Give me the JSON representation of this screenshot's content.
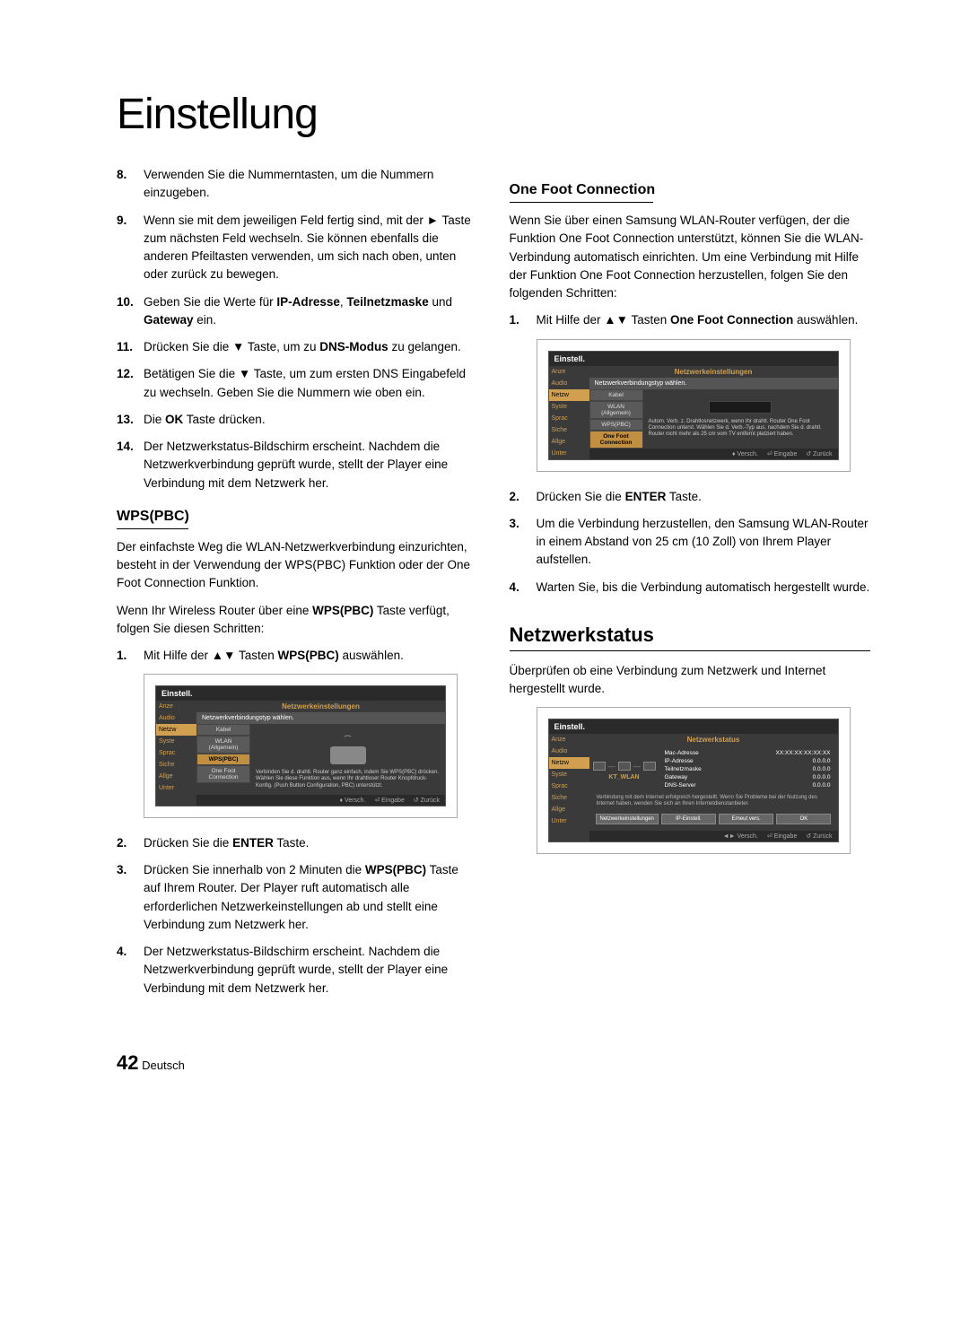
{
  "page": {
    "title": "Einstellung",
    "number": "42",
    "lang": "Deutsch"
  },
  "left": {
    "items8": {
      "n": "8.",
      "t": "Verwenden Sie die Nummerntasten, um die Nummern einzugeben."
    },
    "items9": {
      "n": "9.",
      "t": "Wenn sie mit dem jeweiligen Feld fertig sind, mit der ► Taste zum nächsten Feld wechseln. Sie können ebenfalls die anderen Pfeiltasten verwenden, um sich nach oben, unten oder zurück zu bewegen."
    },
    "items10": {
      "n": "10.",
      "t_pre": "Geben Sie die Werte für ",
      "b1": "IP-Adresse",
      "t_mid": ", ",
      "b2": "Teilnetzmaske",
      "t_mid2": " und ",
      "b3": "Gateway",
      "t_end": " ein."
    },
    "items11": {
      "n": "11.",
      "t_pre": "Drücken Sie die ▼ Taste, um zu ",
      "b1": "DNS-Modus",
      "t_end": " zu gelangen."
    },
    "items12": {
      "n": "12.",
      "t": "Betätigen Sie die ▼ Taste, um zum ersten DNS Eingabefeld zu wechseln. Geben Sie die Nummern wie oben ein."
    },
    "items13": {
      "n": "13.",
      "t_pre": "Die ",
      "b1": "OK",
      "t_end": " Taste drücken."
    },
    "items14": {
      "n": "14.",
      "t": "Der Netzwerkstatus-Bildschirm erscheint. Nachdem die Netzwerkverbindung geprüft wurde, stellt der Player eine Verbindung mit dem Netzwerk her."
    },
    "wps_title": "WPS(PBC)",
    "wps_body1": "Der einfachste Weg die WLAN-Netzwerkverbindung einzurichten, besteht in der Verwendung der WPS(PBC) Funktion oder der One Foot Connection Funktion.",
    "wps_body2_pre": "Wenn Ihr Wireless Router über eine ",
    "wps_body2_b": "WPS(PBC)",
    "wps_body2_end": " Taste verfügt, folgen Sie diesen Schritten:",
    "wps1": {
      "n": "1.",
      "t_pre": "Mit Hilfe der ▲▼ Tasten ",
      "b1": "WPS(PBC)",
      "t_end": " auswählen."
    },
    "wps2": {
      "n": "2.",
      "t_pre": "Drücken Sie die ",
      "b1": "ENTER",
      "t_end": " Taste."
    },
    "wps3": {
      "n": "3.",
      "t_pre": "Drücken Sie innerhalb von 2 Minuten die ",
      "b1": "WPS(PBC)",
      "t_end": " Taste auf Ihrem Router. Der Player ruft automatisch alle erforderlichen Netzwerkeinstellungen ab und stellt eine Verbindung zum Netzwerk her."
    },
    "wps4": {
      "n": "4.",
      "t": "Der Netzwerkstatus-Bildschirm erscheint. Nachdem die Netzwerkverbindung geprüft wurde, stellt der Player eine Verbindung mit dem Netzwerk her."
    }
  },
  "right": {
    "ofc_title": "One Foot Connection",
    "ofc_body": "Wenn Sie über einen Samsung WLAN-Router verfügen, der die Funktion One Foot Connection unterstützt, können Sie die WLAN-Verbindung automatisch einrichten. Um eine Verbindung mit Hilfe der Funktion One Foot Connection herzustellen, folgen Sie den folgenden Schritten:",
    "ofc1": {
      "n": "1.",
      "t_pre": "Mit Hilfe der ▲▼ Tasten ",
      "b1": "One Foot Connection",
      "t_end": " auswählen."
    },
    "ofc2": {
      "n": "2.",
      "t_pre": "Drücken Sie die ",
      "b1": "ENTER",
      "t_end": " Taste."
    },
    "ofc3": {
      "n": "3.",
      "t": "Um die Verbindung herzustellen, den Samsung WLAN-Router in einem Abstand von 25 cm (10 Zoll) von Ihrem Player aufstellen."
    },
    "ofc4": {
      "n": "4.",
      "t": "Warten Sie, bis die Verbindung automatisch hergestellt wurde."
    },
    "ns_title": "Netzwerkstatus",
    "ns_body": "Überprüfen ob eine Verbindung zum Netzwerk und Internet hergestellt wurde."
  },
  "ui_wps": {
    "title": "Einstell.",
    "header": "Netzwerkeinstellungen",
    "sub": "Netzwerkverbindungstyp wählen.",
    "side": [
      "Anze",
      "Audio",
      "Netzw",
      "Syste",
      "Sprac",
      "Siche",
      "Allge",
      "Unter"
    ],
    "menu": [
      "Kabel",
      "WLAN (Allgemein)",
      "WPS(PBC)",
      "One Foot Connection"
    ],
    "sel_idx": 2,
    "desc": "Verbinden Sie d. drahtl. Router ganz einfach, indem Sie WPS(PBC) drücken. Wählen Sie diese Funktion aus, wenn Ihr drahtloser Router Knopfdruck-Konfig. (Push Button Configuration, PBC) unterstützt.",
    "footer": [
      "♦ Versch.",
      "⏎ Eingabe",
      "↺ Zurück"
    ]
  },
  "ui_ofc": {
    "title": "Einstell.",
    "header": "Netzwerkeinstellungen",
    "sub": "Netzwerkverbindungstyp wählen.",
    "side": [
      "Anze",
      "Audio",
      "Netzw",
      "Syste",
      "Sprac",
      "Siche",
      "Allge",
      "Unter"
    ],
    "menu": [
      "Kabel",
      "WLAN (Allgemein)",
      "WPS(PBC)",
      "One Foot Connection"
    ],
    "sel_idx": 3,
    "desc": "Autom. Verb. z. Drahtlosnetzwerk, wenn Ihr drahtl. Router One Foot Connection unterst. Wählen Sie d. Verb.-Typ aus, nachdem Sie d. drahtl. Router nicht mehr als 25 cm vom TV entfernt platziert haben.",
    "footer": [
      "♦ Versch.",
      "⏎ Eingabe",
      "↺ Zurück"
    ]
  },
  "ui_ns": {
    "title": "Einstell.",
    "header": "Netzwerkstatus",
    "side": [
      "Anze",
      "Audio",
      "Netzw",
      "Syste",
      "Sprac",
      "Siche",
      "Allge",
      "Unter"
    ],
    "wlan": "KT_WLAN",
    "rows": [
      {
        "k": "Mac-Adresse",
        "v": "XX:XX:XX:XX:XX:XX"
      },
      {
        "k": "IP-Adresse",
        "v": "0.0.0.0"
      },
      {
        "k": "Teilnetzmaske",
        "v": "0.0.0.0"
      },
      {
        "k": "Gateway",
        "v": "0.0.0.0"
      },
      {
        "k": "DNS-Server",
        "v": "0.0.0.0"
      }
    ],
    "msg": "Verbindung mit dem Internet erfolgreich hergestellt. Wenn Sie Probleme bei der Nutzung des Internet haben, wenden Sie sich an Ihren Internetdienstanbieter.",
    "buttons": [
      "Netzwerkeinstellungen",
      "IP-Einstell.",
      "Erneut vers.",
      "OK"
    ],
    "footer": [
      "◄► Versch.",
      "⏎ Eingabe",
      "↺ Zurück"
    ]
  }
}
